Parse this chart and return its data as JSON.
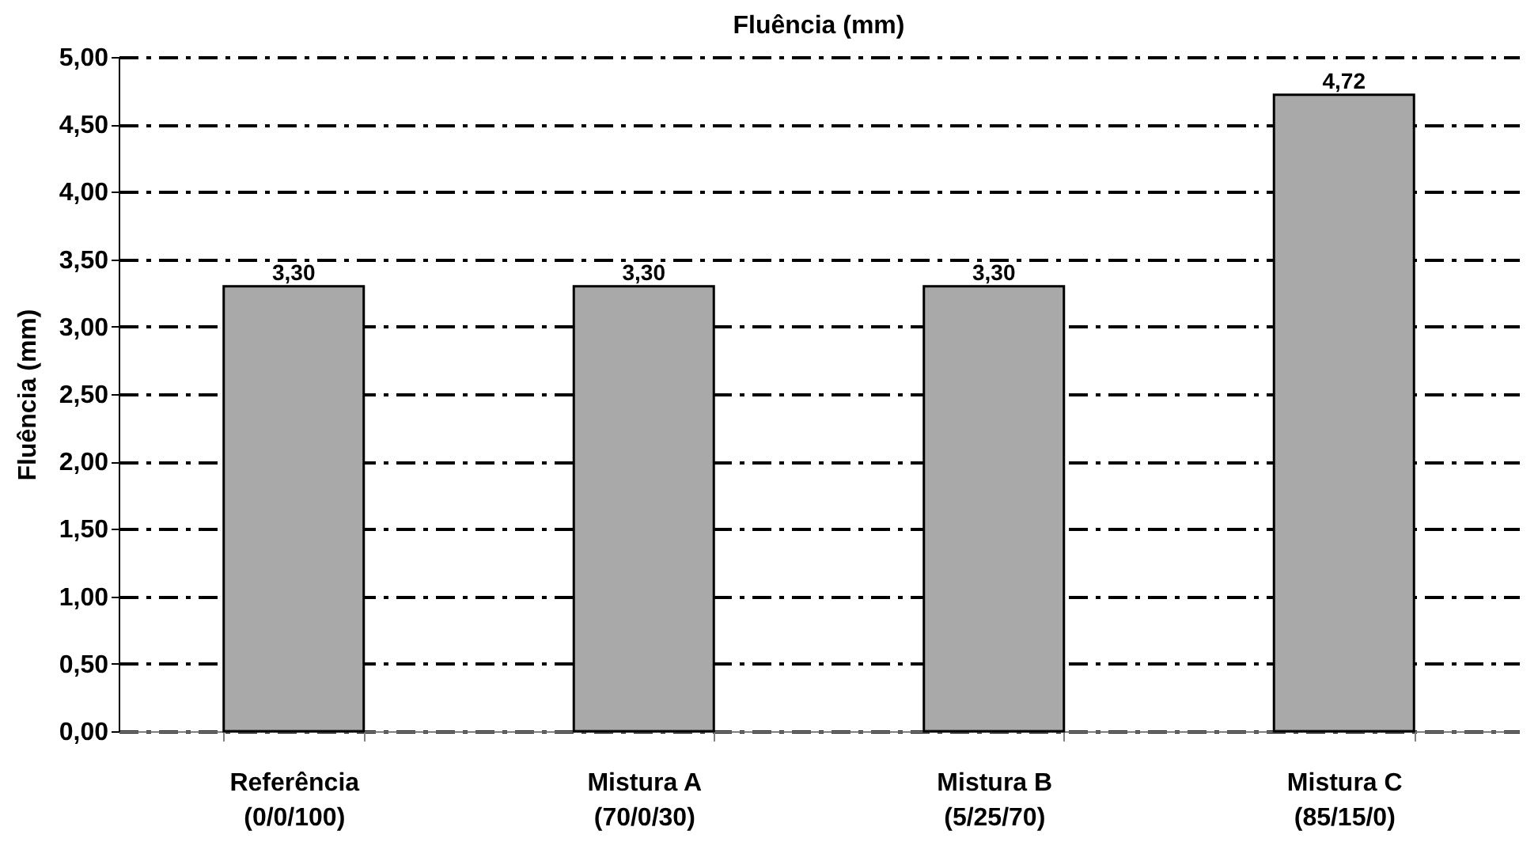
{
  "chart_data": {
    "type": "bar",
    "title": "Fluência (mm)",
    "ylabel": "Fluência (mm)",
    "categories": [
      "Referência\n(0/0/100)",
      "Mistura A\n(70/0/30)",
      "Mistura B\n(5/25/70)",
      "Mistura C\n(85/15/0)"
    ],
    "values": [
      3.3,
      3.3,
      3.3,
      4.72
    ],
    "value_labels": [
      "3,30",
      "3,30",
      "3,30",
      "4,72"
    ],
    "color": "#a9a9a9",
    "ylim": [
      0,
      5
    ],
    "yticks": [
      {
        "value": 0,
        "label": "0,00"
      },
      {
        "value": 0.5,
        "label": "0,50"
      },
      {
        "value": 1,
        "label": "1,00"
      },
      {
        "value": 1.5,
        "label": "1,50"
      },
      {
        "value": 2,
        "label": "2,00"
      },
      {
        "value": 2.5,
        "label": "2,50"
      },
      {
        "value": 3,
        "label": "3,00"
      },
      {
        "value": 3.5,
        "label": "3,50"
      },
      {
        "value": 4,
        "label": "4,00"
      },
      {
        "value": 4.5,
        "label": "4,50"
      },
      {
        "value": 5,
        "label": "5,00"
      }
    ],
    "grid": "y"
  }
}
